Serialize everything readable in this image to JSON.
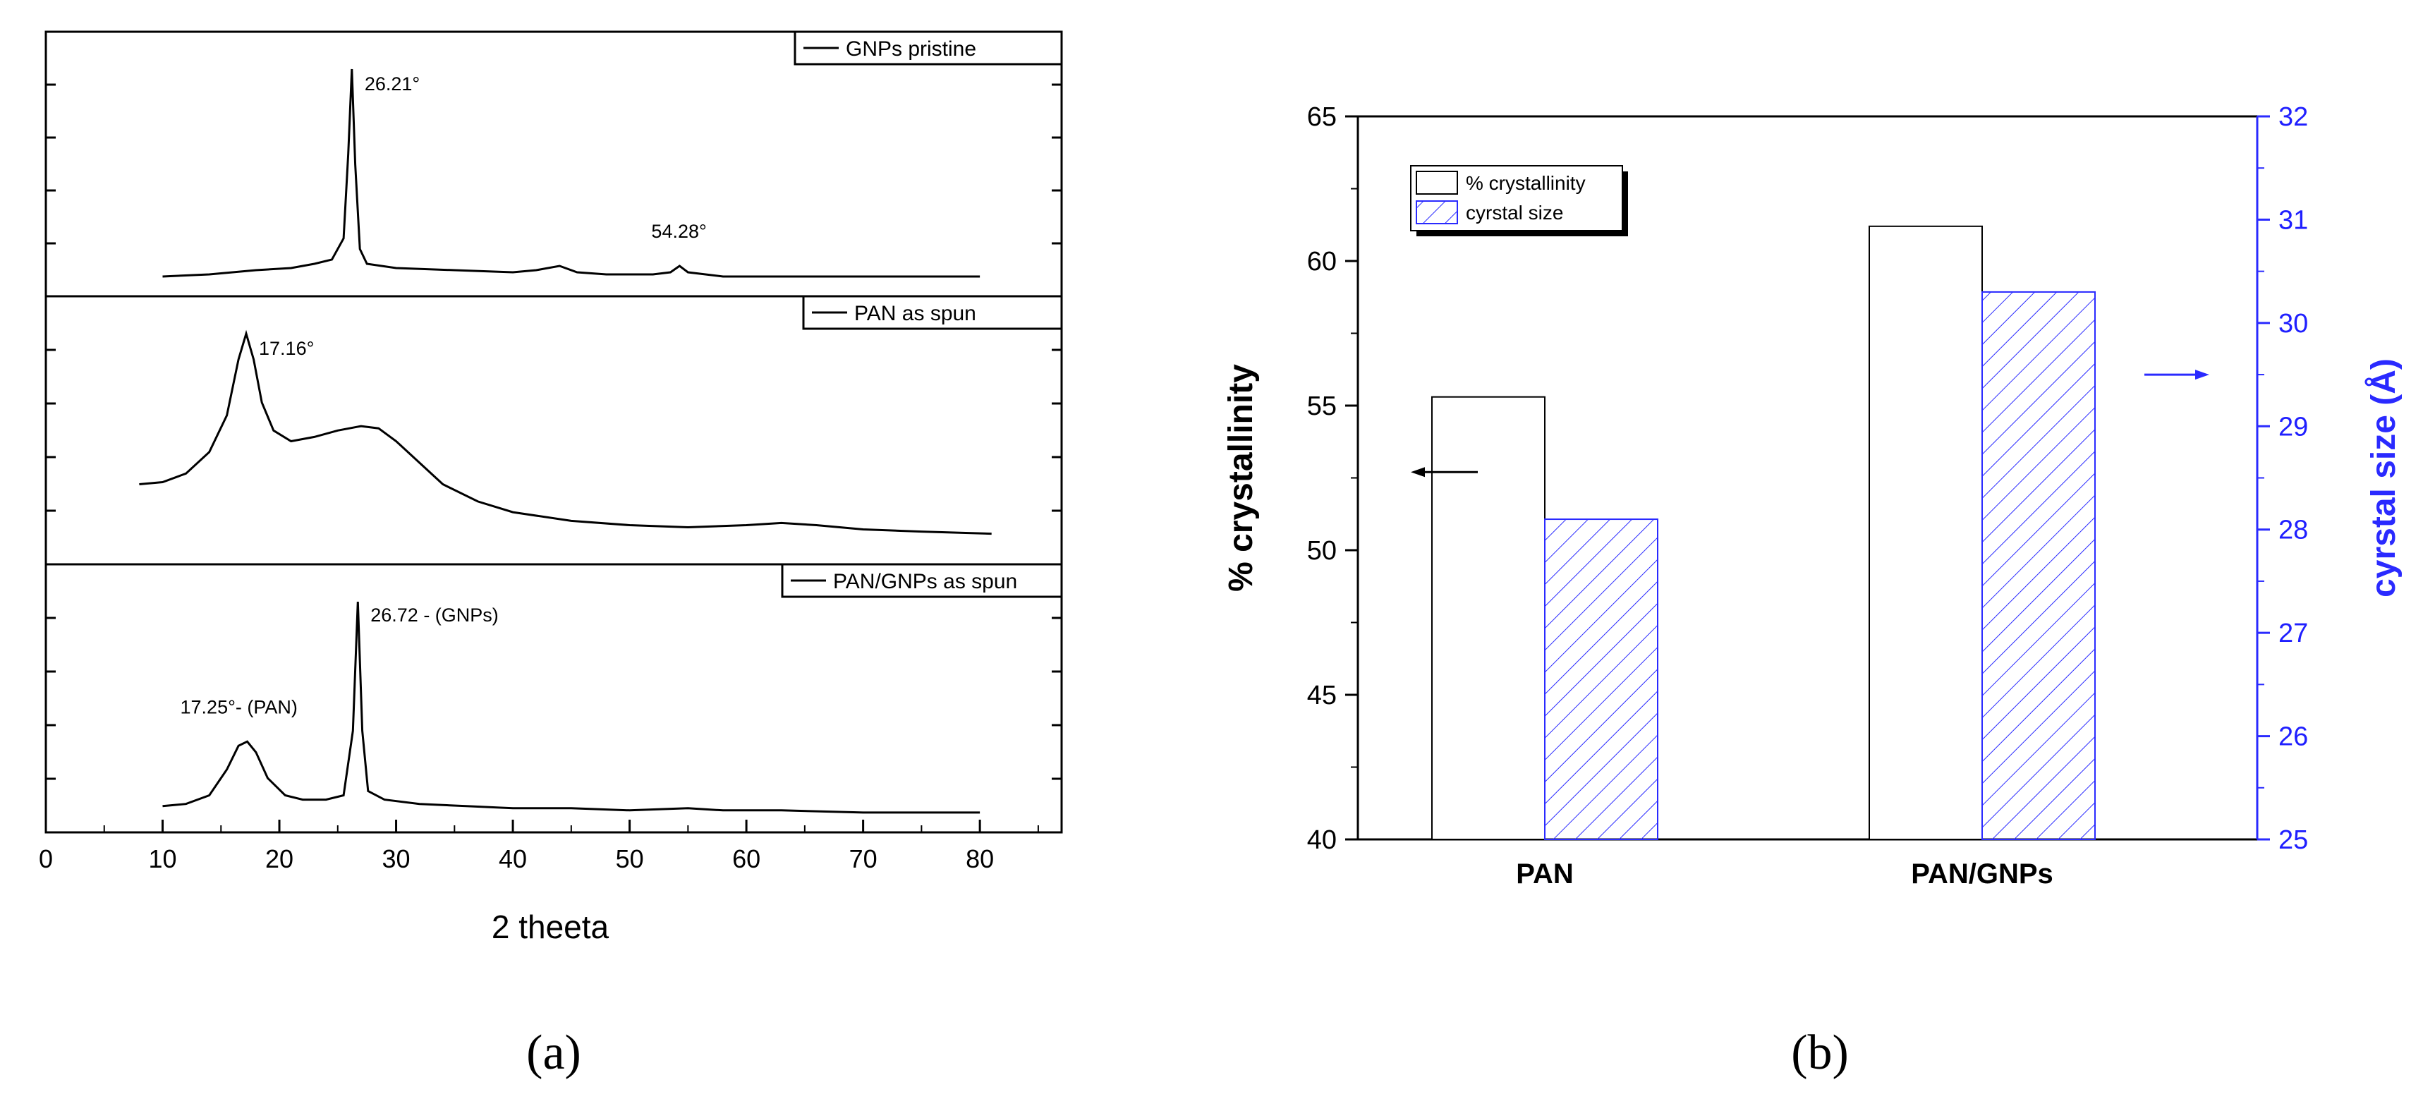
{
  "panel_labels": {
    "a": "(a)",
    "b": "(b)"
  },
  "chart_data": [
    {
      "type": "line",
      "panel": "a",
      "xlabel": "2 theeta",
      "xlim": [
        0,
        87
      ],
      "xticks": [
        0,
        10,
        20,
        30,
        40,
        50,
        60,
        70,
        80
      ],
      "grid": false,
      "series": [
        {
          "name": "GNPs pristine",
          "points": [
            [
              10,
              0.02
            ],
            [
              14,
              0.03
            ],
            [
              18,
              0.05
            ],
            [
              21,
              0.06
            ],
            [
              23,
              0.08
            ],
            [
              24.5,
              0.1
            ],
            [
              25.5,
              0.2
            ],
            [
              25.9,
              0.6
            ],
            [
              26.21,
              1.0
            ],
            [
              26.5,
              0.55
            ],
            [
              26.9,
              0.15
            ],
            [
              27.5,
              0.08
            ],
            [
              30,
              0.06
            ],
            [
              35,
              0.05
            ],
            [
              40,
              0.04
            ],
            [
              42,
              0.05
            ],
            [
              44,
              0.07
            ],
            [
              45.5,
              0.04
            ],
            [
              48,
              0.03
            ],
            [
              52,
              0.03
            ],
            [
              53.5,
              0.04
            ],
            [
              54.28,
              0.07
            ],
            [
              55,
              0.04
            ],
            [
              58,
              0.02
            ],
            [
              65,
              0.02
            ],
            [
              72,
              0.02
            ],
            [
              80,
              0.02
            ]
          ],
          "annotations": [
            {
              "x": 26.21,
              "label": "26.21°"
            },
            {
              "x": 54.28,
              "label": "54.28°"
            }
          ]
        },
        {
          "name": "PAN as spun",
          "points": [
            [
              8,
              0.3
            ],
            [
              10,
              0.31
            ],
            [
              12,
              0.35
            ],
            [
              14,
              0.45
            ],
            [
              15.5,
              0.62
            ],
            [
              16.5,
              0.88
            ],
            [
              17.16,
              1.0
            ],
            [
              17.8,
              0.88
            ],
            [
              18.5,
              0.68
            ],
            [
              19.5,
              0.55
            ],
            [
              21,
              0.5
            ],
            [
              23,
              0.52
            ],
            [
              25,
              0.55
            ],
            [
              27,
              0.57
            ],
            [
              28.5,
              0.56
            ],
            [
              30,
              0.5
            ],
            [
              32,
              0.4
            ],
            [
              34,
              0.3
            ],
            [
              37,
              0.22
            ],
            [
              40,
              0.17
            ],
            [
              45,
              0.13
            ],
            [
              50,
              0.11
            ],
            [
              55,
              0.1
            ],
            [
              60,
              0.11
            ],
            [
              63,
              0.12
            ],
            [
              66,
              0.11
            ],
            [
              70,
              0.09
            ],
            [
              75,
              0.08
            ],
            [
              81,
              0.07
            ]
          ],
          "annotations": [
            {
              "x": 17.16,
              "label": "17.16°"
            }
          ]
        },
        {
          "name": "PAN/GNPs as spun",
          "points": [
            [
              10,
              0.05
            ],
            [
              12,
              0.06
            ],
            [
              14,
              0.1
            ],
            [
              15.5,
              0.22
            ],
            [
              16.5,
              0.33
            ],
            [
              17.25,
              0.35
            ],
            [
              18,
              0.3
            ],
            [
              19,
              0.18
            ],
            [
              20.5,
              0.1
            ],
            [
              22,
              0.08
            ],
            [
              24,
              0.08
            ],
            [
              25.5,
              0.1
            ],
            [
              26.3,
              0.4
            ],
            [
              26.72,
              1.0
            ],
            [
              27.1,
              0.4
            ],
            [
              27.6,
              0.12
            ],
            [
              29,
              0.08
            ],
            [
              32,
              0.06
            ],
            [
              36,
              0.05
            ],
            [
              40,
              0.04
            ],
            [
              45,
              0.04
            ],
            [
              50,
              0.03
            ],
            [
              55,
              0.04
            ],
            [
              58,
              0.03
            ],
            [
              63,
              0.03
            ],
            [
              70,
              0.02
            ],
            [
              75,
              0.02
            ],
            [
              80,
              0.02
            ]
          ],
          "annotations": [
            {
              "x": 17.25,
              "label": "17.25°- (PAN)"
            },
            {
              "x": 26.72,
              "label": "26.72 - (GNPs)"
            }
          ]
        }
      ]
    },
    {
      "type": "bar",
      "panel": "b",
      "categories": [
        "PAN",
        "PAN/GNPs"
      ],
      "ylabel": "% crystallinity",
      "y2label": "cyrstal size (Å)",
      "ylim": [
        40,
        65
      ],
      "yticks": [
        40,
        45,
        50,
        55,
        60,
        65
      ],
      "y2lim": [
        25,
        32
      ],
      "y2ticks": [
        25,
        26,
        27,
        28,
        29,
        30,
        31,
        32
      ],
      "legend_position": "top-left",
      "grid": false,
      "series": [
        {
          "name": "% crystallinity",
          "axis": "left",
          "style": "open",
          "color": "#000000",
          "values": [
            55.3,
            61.2
          ]
        },
        {
          "name": "cyrstal size",
          "axis": "right",
          "style": "hatched",
          "color": "#2a2aff",
          "values": [
            28.1,
            30.3
          ]
        }
      ]
    }
  ]
}
